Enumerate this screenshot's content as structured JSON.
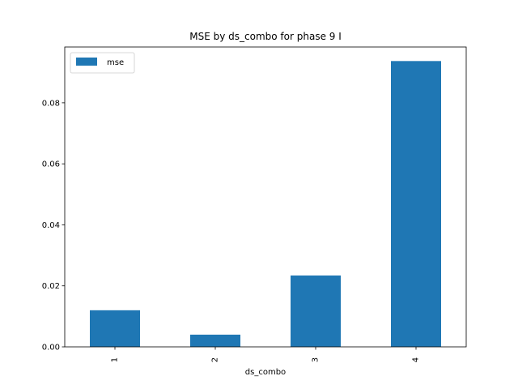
{
  "chart_data": {
    "type": "bar",
    "title": "MSE by ds_combo for phase 9 I",
    "xlabel": "ds_combo",
    "ylabel": "",
    "categories": [
      "1",
      "2",
      "3",
      "4"
    ],
    "series": [
      {
        "name": "mse",
        "values": [
          0.012,
          0.004,
          0.0234,
          0.0937
        ],
        "color": "#1f77b4"
      }
    ],
    "ylim": [
      0,
      0.0983
    ],
    "yticks": [
      0.0,
      0.02,
      0.04,
      0.06,
      0.08
    ],
    "ytick_labels": [
      "0.00",
      "0.02",
      "0.04",
      "0.06",
      "0.08"
    ],
    "xtick_rotation": -90,
    "grid": false,
    "legend_position": "top-left"
  }
}
